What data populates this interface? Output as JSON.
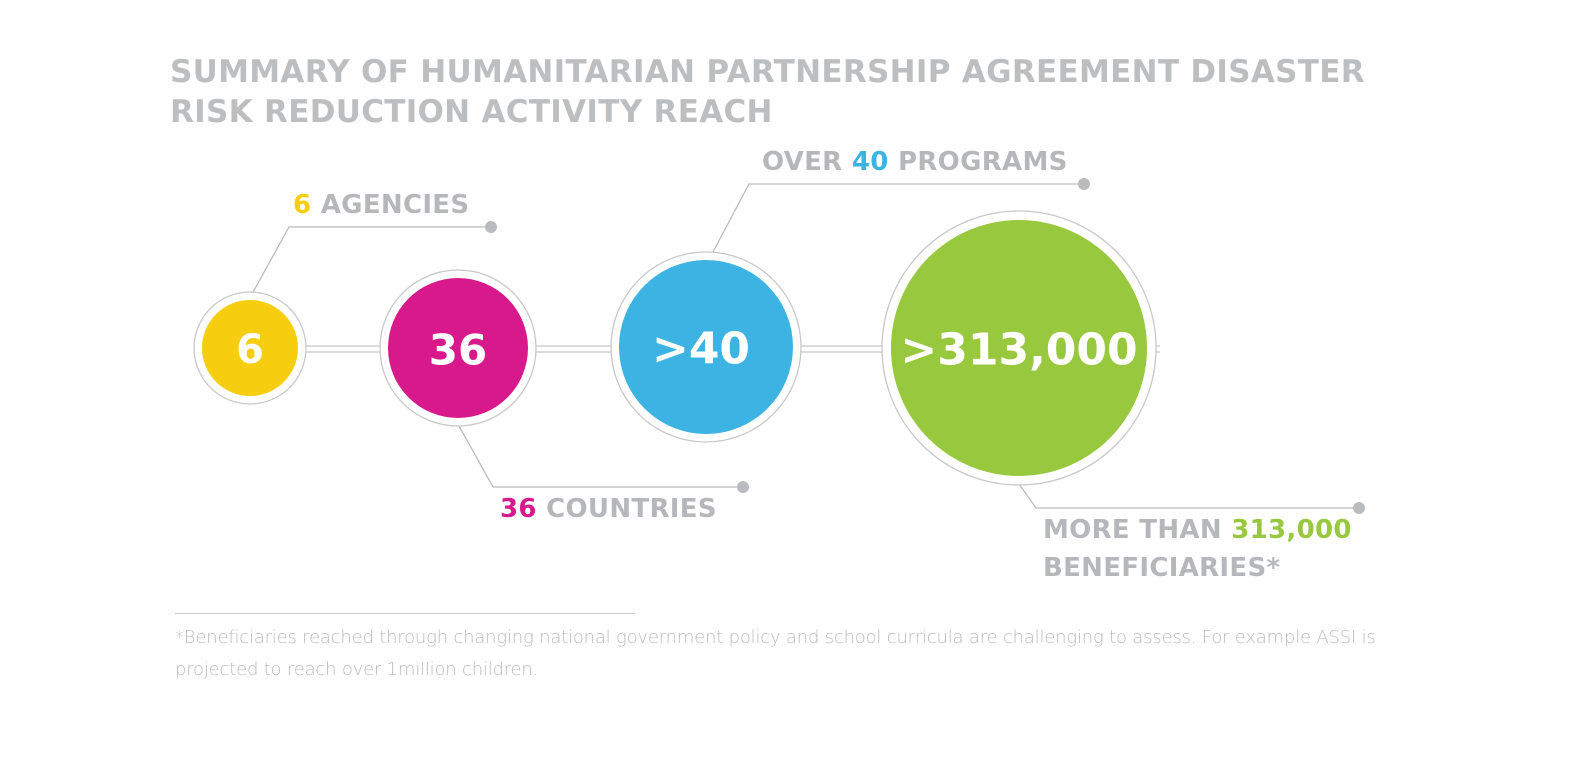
{
  "title": {
    "line1": "SUMMARY OF HUMANITARIAN PARTNERSHIP AGREEMENT DISASTER",
    "line2": "RISK REDUCTION ACTIVITY REACH"
  },
  "nodes": [
    {
      "value": "6",
      "color": "#f7ce0f"
    },
    {
      "value": "36",
      "color": "#d8198b"
    },
    {
      "value": ">40",
      "color": "#3db3e3"
    },
    {
      "value": ">313,000",
      "color": "#98c83d"
    }
  ],
  "labels": {
    "agencies": {
      "num": "6",
      "text": " AGENCIES"
    },
    "programs": {
      "pre": "OVER ",
      "num": "40",
      "text": " PROGRAMS"
    },
    "countries": {
      "num": "36",
      "text": " COUNTRIES"
    },
    "beneficiaries": {
      "pre": "MORE THAN ",
      "num": "313,000",
      "line2": "BENEFICIARIES*"
    }
  },
  "footnote": "*Beneficiaries reached through changing national government policy and school curricula are challenging to assess. For example ASSI is projected to reach over 1million children.",
  "colors": {
    "yellow": "#f7ce0f",
    "pink": "#d8198b",
    "blue": "#3db3e3",
    "green": "#98c83d",
    "grey_text": "#b5b7ba",
    "grey_line": "#c7c8ca"
  }
}
